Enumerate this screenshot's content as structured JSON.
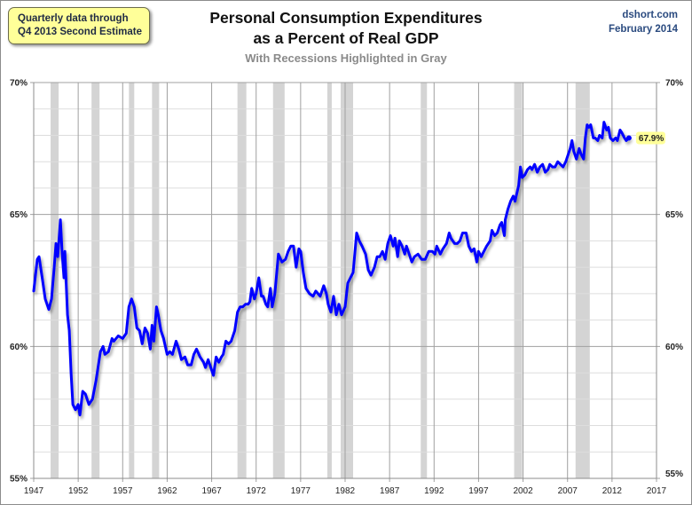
{
  "header": {
    "note_line1": "Quarterly data through",
    "note_line2": "Q4 2013  Second Estimate",
    "title_line1": "Personal Consumption Expenditures",
    "title_line2": "as a Percent of Real GDP",
    "subtitle": "With Recessions Highlighted in Gray",
    "source_line1": "dshort.com",
    "source_line2": "February 2014"
  },
  "colors": {
    "line": "#0000ff",
    "recession": "#d4d4d4",
    "major_grid": "#a0a0a0",
    "minor_grid": "#dddddd",
    "label_bg": "#ffff99"
  },
  "chart_data": {
    "type": "line",
    "title": "Personal Consumption Expenditures as a Percent of Real GDP",
    "subtitle": "With Recessions Highlighted in Gray",
    "xlabel": "",
    "ylabel": "",
    "xlim": [
      1947,
      2017
    ],
    "ylim": [
      55,
      70
    ],
    "x_ticks": [
      "1947",
      "1952",
      "1957",
      "1962",
      "1967",
      "1972",
      "1977",
      "1982",
      "1987",
      "1992",
      "1997",
      "2002",
      "2007",
      "2012",
      "2017"
    ],
    "y_ticks_left": [
      "55%",
      "60%",
      "65%",
      "70%"
    ],
    "y_ticks_right": [
      "55%",
      "60%",
      "65%",
      "70%"
    ],
    "y_tick_values": [
      55,
      60,
      65,
      70
    ],
    "minor_grid_step": 1,
    "grid": true,
    "legend": "none",
    "end_label": "67.9%",
    "recessions": [
      [
        1948.9,
        1949.8
      ],
      [
        1953.5,
        1954.4
      ],
      [
        1957.7,
        1958.3
      ],
      [
        1960.3,
        1961.1
      ],
      [
        1969.9,
        1970.9
      ],
      [
        1973.9,
        1975.2
      ],
      [
        1980.0,
        1980.5
      ],
      [
        1981.5,
        1982.9
      ],
      [
        1990.5,
        1991.2
      ],
      [
        2001.0,
        2001.9
      ],
      [
        2007.9,
        2009.5
      ]
    ],
    "series": [
      {
        "name": "PCE % of Real GDP",
        "x": [
          1947.0,
          1947.4,
          1947.6,
          1948.0,
          1948.3,
          1948.7,
          1949.0,
          1949.3,
          1949.5,
          1949.7,
          1950.0,
          1950.2,
          1950.4,
          1950.5,
          1950.8,
          1951.0,
          1951.1,
          1951.2,
          1951.4,
          1951.7,
          1952.0,
          1952.2,
          1952.5,
          1952.8,
          1953.2,
          1953.6,
          1954.0,
          1954.5,
          1954.8,
          1955.0,
          1955.4,
          1955.8,
          1956.0,
          1956.5,
          1957.0,
          1957.4,
          1957.7,
          1958.0,
          1958.3,
          1958.6,
          1958.9,
          1959.2,
          1959.5,
          1959.8,
          1960.1,
          1960.3,
          1960.5,
          1960.8,
          1961.0,
          1961.3,
          1961.6,
          1962.0,
          1962.3,
          1962.6,
          1963.0,
          1963.3,
          1963.6,
          1964.0,
          1964.3,
          1964.7,
          1965.0,
          1965.3,
          1965.7,
          1966.1,
          1966.3,
          1966.6,
          1967.0,
          1967.2,
          1967.5,
          1967.8,
          1968.1,
          1968.3,
          1968.6,
          1968.9,
          1969.2,
          1969.6,
          1969.9,
          1970.2,
          1970.5,
          1970.8,
          1971.1,
          1971.3,
          1971.5,
          1971.8,
          1972.0,
          1972.3,
          1972.6,
          1972.8,
          1973.1,
          1973.3,
          1973.6,
          1973.8,
          1974.1,
          1974.5,
          1974.9,
          1975.3,
          1975.6,
          1975.9,
          1976.2,
          1976.5,
          1976.8,
          1977.0,
          1977.3,
          1977.6,
          1978.0,
          1978.4,
          1978.7,
          1979.2,
          1979.6,
          1979.9,
          1980.1,
          1980.4,
          1980.7,
          1981.0,
          1981.3,
          1981.6,
          1982.0,
          1982.3,
          1982.6,
          1982.9,
          1983.3,
          1983.6,
          1983.9,
          1984.3,
          1984.6,
          1984.9,
          1985.3,
          1985.6,
          1985.9,
          1986.2,
          1986.5,
          1986.8,
          1987.1,
          1987.4,
          1987.6,
          1987.9,
          1988.1,
          1988.4,
          1988.7,
          1988.9,
          1989.2,
          1989.5,
          1989.8,
          1990.2,
          1990.6,
          1991.0,
          1991.4,
          1991.8,
          1992.1,
          1992.3,
          1992.7,
          1993.0,
          1993.4,
          1993.7,
          1993.9,
          1994.3,
          1994.6,
          1994.9,
          1995.2,
          1995.6,
          1995.9,
          1996.2,
          1996.5,
          1996.8,
          1997.0,
          1997.3,
          1997.6,
          1997.9,
          1998.3,
          1998.5,
          1998.8,
          1999.1,
          1999.4,
          1999.6,
          1999.9,
          2000.0,
          2000.3,
          2000.6,
          2000.9,
          2001.1,
          2001.5,
          2001.7,
          2001.9,
          2002.2,
          2002.5,
          2002.8,
          2003.0,
          2003.3,
          2003.6,
          2003.9,
          2004.2,
          2004.5,
          2004.8,
          2005.0,
          2005.3,
          2005.6,
          2005.9,
          2006.2,
          2006.5,
          2006.8,
          2007.1,
          2007.3,
          2007.5,
          2007.7,
          2008.0,
          2008.3,
          2008.5,
          2008.8,
          2009.0,
          2009.2,
          2009.4,
          2009.6,
          2009.9,
          2010.1,
          2010.4,
          2010.6,
          2010.9,
          2011.1,
          2011.4,
          2011.6,
          2011.8,
          2012.1,
          2012.4,
          2012.6,
          2012.9,
          2013.1,
          2013.4,
          2013.6,
          2013.9
        ],
        "values": [
          62.1,
          63.3,
          63.4,
          62.5,
          61.8,
          61.4,
          61.8,
          63.0,
          63.9,
          63.4,
          64.8,
          63.5,
          62.6,
          63.6,
          61.2,
          60.6,
          59.8,
          59.0,
          57.8,
          57.6,
          57.8,
          57.4,
          58.3,
          58.2,
          57.8,
          58.0,
          58.7,
          59.8,
          60.0,
          59.7,
          59.8,
          60.3,
          60.2,
          60.4,
          60.3,
          60.5,
          61.5,
          61.8,
          61.5,
          60.7,
          60.6,
          60.1,
          60.7,
          60.5,
          59.9,
          60.8,
          60.2,
          61.5,
          61.2,
          60.6,
          60.3,
          59.7,
          59.8,
          59.7,
          60.2,
          59.9,
          59.5,
          59.6,
          59.3,
          59.3,
          59.7,
          59.9,
          59.6,
          59.4,
          59.2,
          59.5,
          59.1,
          58.9,
          59.6,
          59.4,
          59.6,
          59.7,
          60.2,
          60.1,
          60.2,
          60.6,
          61.3,
          61.5,
          61.5,
          61.6,
          61.6,
          61.7,
          62.2,
          61.8,
          62.0,
          62.6,
          61.9,
          61.9,
          61.6,
          61.5,
          62.2,
          61.5,
          62.0,
          63.5,
          63.2,
          63.3,
          63.6,
          63.8,
          63.8,
          63.0,
          63.7,
          63.6,
          62.8,
          62.2,
          62.0,
          61.9,
          62.1,
          61.9,
          62.3,
          62.0,
          61.6,
          61.3,
          61.9,
          61.2,
          61.6,
          61.2,
          61.5,
          62.4,
          62.6,
          62.8,
          64.3,
          64.0,
          63.8,
          63.5,
          62.9,
          62.7,
          63.0,
          63.4,
          63.4,
          63.6,
          63.3,
          63.9,
          64.2,
          63.8,
          64.1,
          63.4,
          64.0,
          63.8,
          63.5,
          63.8,
          63.5,
          63.2,
          63.4,
          63.5,
          63.3,
          63.3,
          63.6,
          63.6,
          63.5,
          63.8,
          63.5,
          63.7,
          63.9,
          64.3,
          64.1,
          63.9,
          63.9,
          64.0,
          64.3,
          64.3,
          63.8,
          63.6,
          63.7,
          63.2,
          63.6,
          63.4,
          63.6,
          63.8,
          64.0,
          64.4,
          64.2,
          64.3,
          64.6,
          64.7,
          64.2,
          64.8,
          65.2,
          65.5,
          65.7,
          65.5,
          66.1,
          66.8,
          66.4,
          66.5,
          66.7,
          66.8,
          66.7,
          66.9,
          66.6,
          66.8,
          66.9,
          66.6,
          66.7,
          66.9,
          66.8,
          66.8,
          67.0,
          66.9,
          66.8,
          67.0,
          67.3,
          67.5,
          67.8,
          67.4,
          67.1,
          67.5,
          67.3,
          67.1,
          67.9,
          68.4,
          68.3,
          68.4,
          67.9,
          67.9,
          67.8,
          68.0,
          67.9,
          68.5,
          68.2,
          68.3,
          67.9,
          67.8,
          67.9,
          67.8,
          68.2,
          68.1,
          67.9,
          67.8,
          67.9
        ]
      }
    ]
  }
}
